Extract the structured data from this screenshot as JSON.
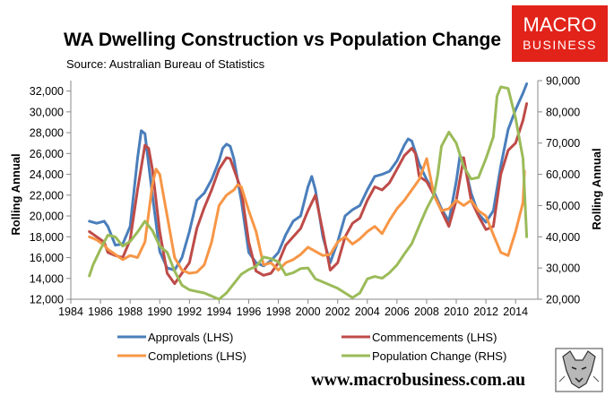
{
  "brand": {
    "logo_line1": "MACRO",
    "logo_line2": "BUSINESS",
    "logo_color": "#e2231a",
    "website": "www.macrobusiness.com.au"
  },
  "chart_data": {
    "type": "line",
    "title": "WA Dwelling Construction vs Population Change",
    "subtitle": "Source: Australian Bureau of Statistics",
    "xlabel": "",
    "ylabel_left": "Rolling Annual",
    "ylabel_right": "Rolling Annual",
    "xlim": [
      1984,
      2015.5
    ],
    "ylim_left": [
      12000,
      33000
    ],
    "ylim_right": [
      20000,
      90000
    ],
    "x_ticks": [
      "1984",
      "1986",
      "1988",
      "1990",
      "1992",
      "1994",
      "1996",
      "1998",
      "2000",
      "2002",
      "2004",
      "2006",
      "2008",
      "2010",
      "2012",
      "2014"
    ],
    "y_left_ticks": [
      "12,000",
      "14,000",
      "16,000",
      "18,000",
      "20,000",
      "22,000",
      "24,000",
      "26,000",
      "28,000",
      "30,000",
      "32,000"
    ],
    "y_right_ticks": [
      "20,000",
      "30,000",
      "40,000",
      "50,000",
      "60,000",
      "70,000",
      "80,000",
      "90,000"
    ],
    "grid": false,
    "legend_position": "bottom",
    "series": [
      {
        "name": "Approvals (LHS)",
        "axis": "left",
        "color": "#4a7ebb",
        "x": [
          1985.25,
          1985.75,
          1986.25,
          1986.5,
          1987.0,
          1987.5,
          1988.0,
          1988.5,
          1988.75,
          1989.0,
          1989.5,
          1990.0,
          1990.5,
          1991.0,
          1991.5,
          1992.0,
          1992.5,
          1993.0,
          1993.5,
          1994.0,
          1994.25,
          1994.5,
          1994.75,
          1995.0,
          1995.5,
          1996.0,
          1996.5,
          1997.0,
          1997.5,
          1998.0,
          1998.5,
          1999.0,
          1999.5,
          2000.0,
          2000.25,
          2000.5,
          2001.0,
          2001.5,
          2002.0,
          2002.5,
          2003.0,
          2003.5,
          2004.0,
          2004.5,
          2005.0,
          2005.5,
          2006.0,
          2006.5,
          2006.75,
          2007.0,
          2007.5,
          2008.0,
          2008.5,
          2009.0,
          2009.5,
          2010.0,
          2010.25,
          2010.5,
          2011.0,
          2011.5,
          2012.0,
          2012.5,
          2013.0,
          2013.5,
          2014.0,
          2014.5,
          2014.75
        ],
        "values": [
          19500,
          19300,
          19500,
          19000,
          17200,
          17300,
          19000,
          25500,
          28200,
          27900,
          22000,
          16600,
          15000,
          14800,
          16000,
          18500,
          21500,
          22200,
          23500,
          25300,
          26500,
          26900,
          26700,
          25500,
          21500,
          16500,
          15500,
          15200,
          15700,
          16500,
          18200,
          19500,
          20000,
          22800,
          23800,
          22500,
          18000,
          15500,
          17500,
          20000,
          20600,
          21000,
          22500,
          23800,
          24000,
          24300,
          25300,
          26800,
          27400,
          27200,
          25000,
          23500,
          22300,
          20700,
          19500,
          23300,
          25800,
          25300,
          22200,
          20200,
          19400,
          20500,
          24800,
          28300,
          30200,
          31800,
          32700
        ]
      },
      {
        "name": "Commencements (LHS)",
        "axis": "left",
        "color": "#be4b48",
        "x": [
          1985.25,
          1985.75,
          1986.25,
          1986.5,
          1987.0,
          1987.5,
          1988.0,
          1988.5,
          1989.0,
          1989.25,
          1989.5,
          1990.0,
          1990.5,
          1991.0,
          1991.5,
          1992.0,
          1992.5,
          1993.0,
          1993.5,
          1994.0,
          1994.5,
          1994.75,
          1995.0,
          1995.5,
          1996.0,
          1996.5,
          1997.0,
          1997.5,
          1998.0,
          1998.5,
          1999.0,
          1999.5,
          2000.0,
          2000.5,
          2001.0,
          2001.5,
          2002.0,
          2002.5,
          2003.0,
          2003.5,
          2004.0,
          2004.5,
          2005.0,
          2005.5,
          2006.0,
          2006.5,
          2007.0,
          2007.25,
          2007.5,
          2008.0,
          2008.5,
          2009.0,
          2009.5,
          2010.0,
          2010.5,
          2011.0,
          2011.5,
          2012.0,
          2012.5,
          2013.0,
          2013.5,
          2014.0,
          2014.5,
          2014.75
        ],
        "values": [
          18500,
          18000,
          17500,
          16500,
          16200,
          16000,
          17700,
          22500,
          26800,
          26500,
          24500,
          18500,
          14500,
          13500,
          14500,
          15500,
          18800,
          20800,
          22500,
          24500,
          25600,
          25500,
          24500,
          22500,
          17500,
          14700,
          14300,
          14500,
          15500,
          17200,
          18000,
          18800,
          20500,
          22000,
          18500,
          14800,
          15500,
          18000,
          19300,
          19800,
          21500,
          22800,
          22500,
          23200,
          24500,
          25800,
          26500,
          26000,
          23800,
          23300,
          22000,
          20500,
          19000,
          21500,
          25600,
          21500,
          20000,
          18700,
          19000,
          24000,
          26300,
          27000,
          29200,
          30800
        ]
      },
      {
        "name": "Completions (LHS)",
        "axis": "left",
        "color": "#f79646",
        "x": [
          1985.25,
          1985.75,
          1986.25,
          1986.5,
          1987.0,
          1987.5,
          1988.0,
          1988.5,
          1989.0,
          1989.5,
          1989.75,
          1990.0,
          1990.5,
          1991.0,
          1991.5,
          1992.0,
          1992.5,
          1993.0,
          1993.5,
          1994.0,
          1994.5,
          1995.0,
          1995.25,
          1995.5,
          1996.0,
          1996.5,
          1997.0,
          1997.5,
          1998.0,
          1998.5,
          1999.0,
          1999.5,
          2000.0,
          2000.5,
          2001.0,
          2001.5,
          2002.0,
          2002.5,
          2003.0,
          2003.5,
          2004.0,
          2004.5,
          2005.0,
          2005.5,
          2006.0,
          2006.5,
          2007.0,
          2007.5,
          2008.0,
          2008.5,
          2009.0,
          2009.5,
          2010.0,
          2010.5,
          2011.0,
          2011.5,
          2012.0,
          2012.5,
          2013.0,
          2013.5,
          2014.0,
          2014.5,
          2014.6
        ],
        "values": [
          18000,
          17700,
          17200,
          16800,
          16300,
          15800,
          16200,
          16000,
          17500,
          23000,
          24500,
          24000,
          20000,
          16000,
          14800,
          14500,
          14600,
          15300,
          17500,
          21000,
          22000,
          22500,
          23000,
          22800,
          20500,
          18500,
          15300,
          15500,
          14800,
          15500,
          15800,
          16300,
          17000,
          16600,
          16200,
          16300,
          17500,
          18000,
          17300,
          17800,
          18500,
          19000,
          18300,
          19600,
          20700,
          21500,
          22500,
          23500,
          25500,
          22000,
          20500,
          20700,
          21500,
          21000,
          21500,
          20500,
          20000,
          18200,
          16500,
          16200,
          18500,
          21300,
          24300
        ]
      },
      {
        "name": "Population Change (RHS)",
        "axis": "right",
        "color": "#9bbb59",
        "x": [
          1985.25,
          1985.5,
          1986.0,
          1986.5,
          1987.0,
          1987.5,
          1988.0,
          1988.5,
          1989.0,
          1989.5,
          1990.0,
          1990.5,
          1991.0,
          1991.5,
          1992.0,
          1992.5,
          1993.0,
          1993.5,
          1994.0,
          1994.5,
          1995.0,
          1995.5,
          1996.0,
          1996.5,
          1997.0,
          1997.5,
          1998.0,
          1998.5,
          1999.0,
          1999.5,
          2000.0,
          2000.5,
          2001.0,
          2001.5,
          2002.0,
          2002.5,
          2003.0,
          2003.5,
          2004.0,
          2004.5,
          2005.0,
          2005.5,
          2006.0,
          2006.5,
          2007.0,
          2007.5,
          2008.0,
          2008.5,
          2008.75,
          2009.0,
          2009.5,
          2010.0,
          2010.5,
          2011.0,
          2011.5,
          2012.0,
          2012.5,
          2012.75,
          2013.0,
          2013.5,
          2014.0,
          2014.5,
          2014.75
        ],
        "values": [
          27500,
          31000,
          36000,
          40500,
          40000,
          37000,
          38500,
          41500,
          45000,
          42000,
          37000,
          35000,
          29000,
          24500,
          23000,
          22500,
          22000,
          21000,
          20000,
          22000,
          25000,
          28000,
          29500,
          30500,
          33500,
          33000,
          32000,
          27800,
          28500,
          29800,
          30000,
          26500,
          25500,
          24500,
          23500,
          22000,
          20500,
          22000,
          26500,
          27300,
          26700,
          28500,
          31000,
          34500,
          37800,
          43500,
          49000,
          53500,
          60000,
          69000,
          73500,
          70000,
          62500,
          58500,
          59000,
          65000,
          72000,
          85000,
          88000,
          87500,
          78000,
          65000,
          40000
        ]
      }
    ]
  }
}
